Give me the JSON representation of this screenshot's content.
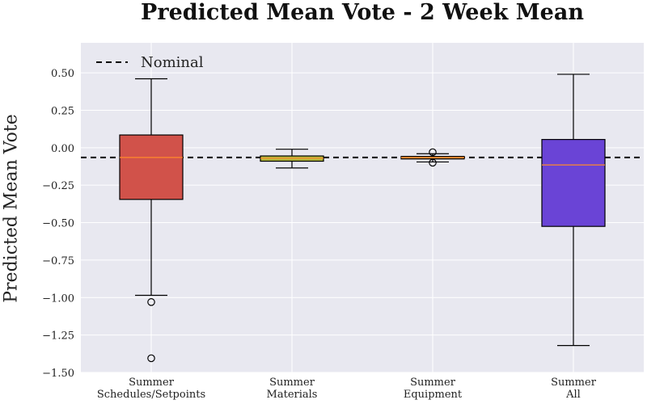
{
  "chart_data": {
    "type": "box",
    "title": "Predicted Mean Vote - 2 Week Mean",
    "xlabel": "",
    "ylabel": "Predicted Mean Vote",
    "ylim": [
      -1.5,
      0.7
    ],
    "yticks": [
      -1.5,
      -1.25,
      -1.0,
      -0.75,
      -0.5,
      -0.25,
      0.0,
      0.25,
      0.5
    ],
    "ytick_labels": [
      "−1.50",
      "−1.25",
      "−1.00",
      "−0.75",
      "−0.50",
      "−0.25",
      "0.00",
      "0.25",
      "0.50"
    ],
    "grid": true,
    "legend": {
      "position": "top-left",
      "entries": [
        "Nominal"
      ]
    },
    "reference_line": {
      "name": "Nominal",
      "value": -0.065,
      "style": "dashed",
      "color": "#000000"
    },
    "boxes": [
      {
        "label": [
          "Summer",
          "Schedules/Setpoints"
        ],
        "color": "#d1524a",
        "whisker_low": -0.985,
        "q1": -0.345,
        "median": -0.065,
        "q3": 0.085,
        "whisker_high": 0.46,
        "outliers": [
          -1.03,
          -1.405
        ]
      },
      {
        "label": [
          "Summer",
          "Materials"
        ],
        "color": "#b4b83c",
        "whisker_low": -0.135,
        "q1": -0.09,
        "median": -0.07,
        "q3": -0.055,
        "whisker_high": -0.01,
        "outliers": []
      },
      {
        "label": [
          "Summer",
          "Equipment"
        ],
        "color": "#c98a45",
        "whisker_low": -0.095,
        "q1": -0.075,
        "median": -0.065,
        "q3": -0.058,
        "whisker_high": -0.04,
        "outliers": [
          -0.03,
          -0.1
        ]
      },
      {
        "label": [
          "Summer",
          "All"
        ],
        "color": "#6a44d6",
        "whisker_low": -1.32,
        "q1": -0.525,
        "median": -0.115,
        "q3": 0.055,
        "whisker_high": 0.49,
        "outliers": []
      }
    ]
  }
}
